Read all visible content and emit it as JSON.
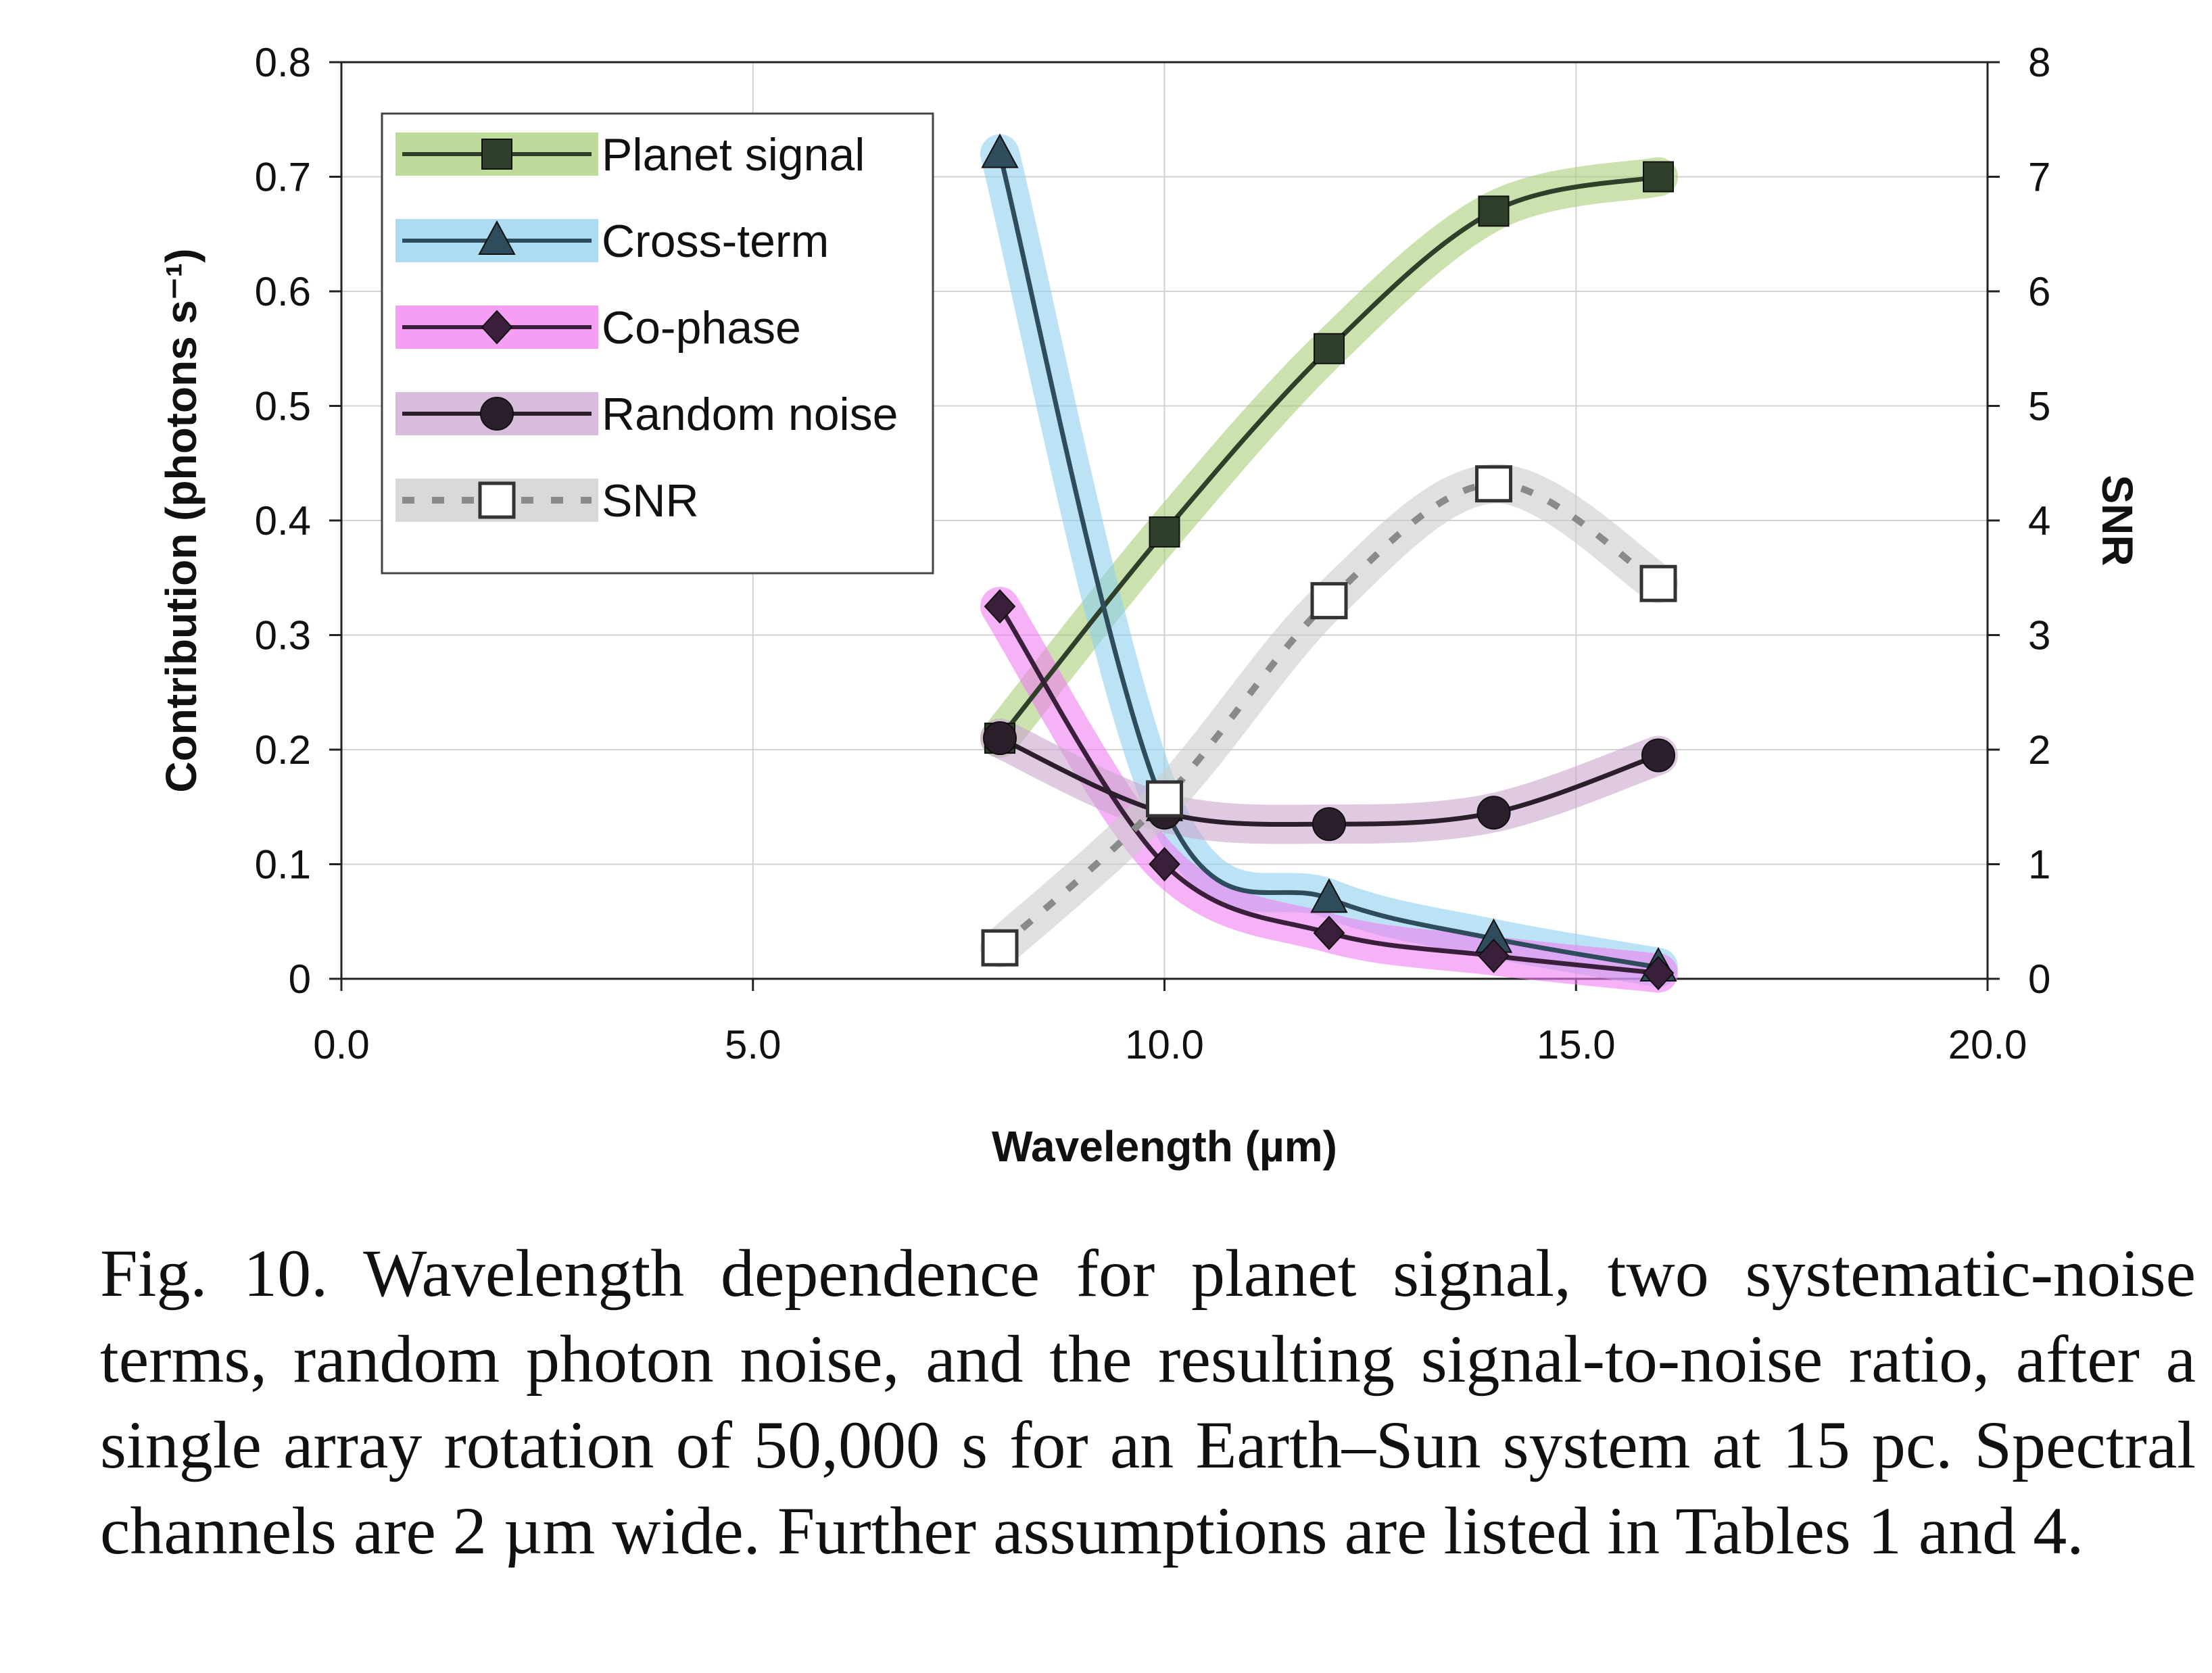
{
  "chart_data": {
    "type": "line",
    "xlabel": "Wavelength (µm)",
    "ylabel": "Contribution (photons s⁻¹)",
    "y2label": "SNR",
    "xlim": [
      0,
      20
    ],
    "ylim": [
      0,
      0.8
    ],
    "y2lim": [
      0,
      8
    ],
    "x_ticks": [
      "0.0",
      "5.0",
      "10.0",
      "15.0",
      "20.0"
    ],
    "y_ticks": [
      "0",
      "0.1",
      "0.2",
      "0.3",
      "0.4",
      "0.5",
      "0.6",
      "0.7",
      "0.8"
    ],
    "y2_ticks": [
      "0",
      "1",
      "2",
      "3",
      "4",
      "5",
      "6",
      "7",
      "8"
    ],
    "grid": true,
    "legend_position": "top-left",
    "series": [
      {
        "name": "Planet signal",
        "axis": "left",
        "marker": "square",
        "line": "solid",
        "color": "#2f3f2a",
        "highlight": "#a9cf7a",
        "x": [
          8,
          10,
          12,
          14,
          16
        ],
        "values": [
          0.21,
          0.39,
          0.55,
          0.67,
          0.7
        ]
      },
      {
        "name": "Cross-term",
        "axis": "left",
        "marker": "triangle",
        "line": "solid",
        "color": "#2f4c5c",
        "highlight": "#8fd0ee",
        "x": [
          8,
          10,
          12,
          14,
          16
        ],
        "values": [
          0.72,
          0.15,
          0.07,
          0.035,
          0.01
        ]
      },
      {
        "name": "Co-phase",
        "axis": "left",
        "marker": "diamond",
        "line": "solid",
        "color": "#3a1f3a",
        "highlight": "#f07ff0",
        "x": [
          8,
          10,
          12,
          14,
          16
        ],
        "values": [
          0.325,
          0.1,
          0.04,
          0.02,
          0.005
        ]
      },
      {
        "name": "Random noise",
        "axis": "left",
        "marker": "circle",
        "line": "solid",
        "color": "#2a1f2a",
        "highlight": "#c9a6cf",
        "x": [
          8,
          10,
          12,
          14,
          16
        ],
        "values": [
          0.21,
          0.145,
          0.135,
          0.145,
          0.195
        ]
      },
      {
        "name": "SNR",
        "axis": "right",
        "marker": "open-square",
        "line": "dashed",
        "color": "#8a8a8a",
        "highlight": "#cccccc",
        "x": [
          8,
          10,
          12,
          14,
          16
        ],
        "values": [
          0.27,
          1.57,
          3.3,
          4.32,
          3.45
        ]
      }
    ]
  },
  "caption": {
    "text": "Fig. 10. Wavelength dependence for planet signal, two systematic-noise terms, random photon noise, and the resulting signal-to-noise ratio, after a single array rotation of 50,000 s for an Earth–Sun system at 15 pc. Spectral channels are 2 µm wide. Further assumptions are listed in Tables 1 and 4."
  }
}
